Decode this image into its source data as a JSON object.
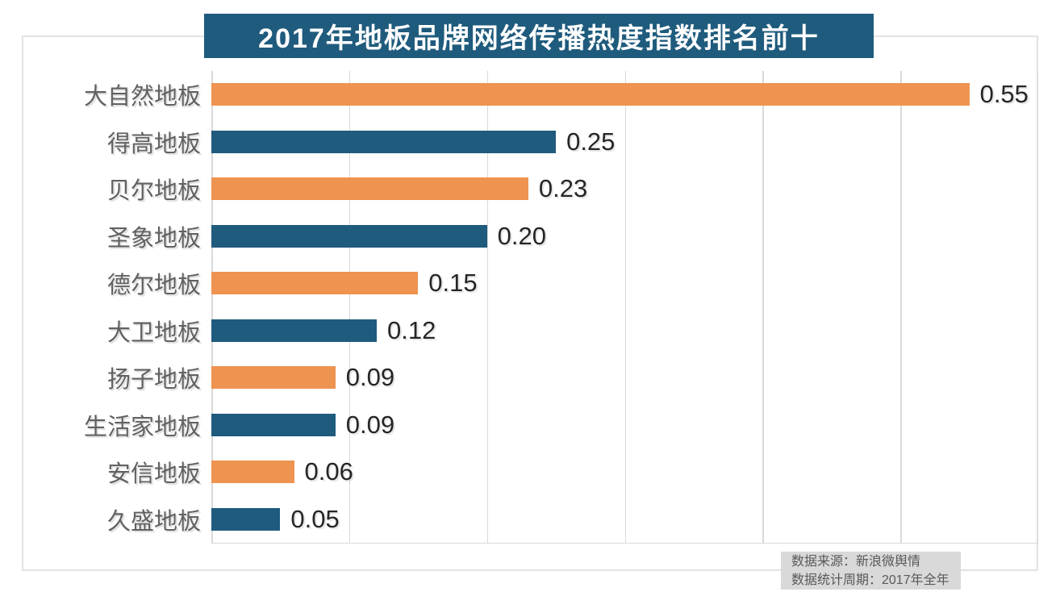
{
  "title": "2017年地板品牌网络传播热度指数排名前十",
  "source_note": {
    "line1": "数据来源：新浪微舆情",
    "line2": "数据统计周期：2017年全年"
  },
  "colors": {
    "title_bg": "#1F5B7D",
    "title_text": "#FFFFFF",
    "bar_orange": "#EF9350",
    "bar_teal": "#1F5B7D",
    "grid": "#D9D9D9",
    "category_text": "#616161",
    "value_text": "#262626",
    "source_bg": "#D9D9D9",
    "source_text": "#595959"
  },
  "chart_data": {
    "type": "bar",
    "orientation": "horizontal",
    "title": "2017年地板品牌网络传播热度指数排名前十",
    "categories": [
      "大自然地板",
      "得高地板",
      "贝尔地板",
      "圣象地板",
      "德尔地板",
      "大卫地板",
      "扬子地板",
      "生活家地板",
      "安信地板",
      "久盛地板"
    ],
    "values": [
      0.55,
      0.25,
      0.23,
      0.2,
      0.15,
      0.12,
      0.09,
      0.09,
      0.06,
      0.05
    ],
    "value_labels": [
      "0.55",
      "0.25",
      "0.23",
      "0.20",
      "0.15",
      "0.12",
      "0.09",
      "0.09",
      "0.06",
      "0.05"
    ],
    "xlabel": "",
    "ylabel": "",
    "xlim": [
      0,
      0.6
    ],
    "gridline_step": 0.1,
    "grid": true,
    "tick_labels_shown": false,
    "legend": "none",
    "bar_color_pattern_alternating": [
      "#EF9350",
      "#1F5B7D"
    ],
    "data_label_position": "right-of-bar"
  }
}
